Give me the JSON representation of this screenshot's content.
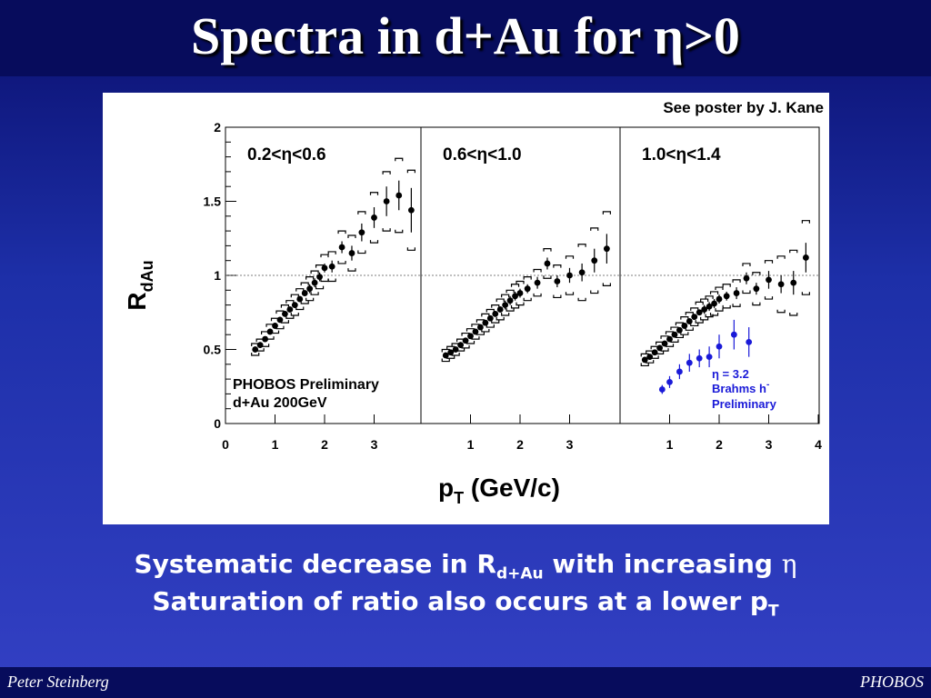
{
  "slide": {
    "title_prefix": "Spectra in d+Au for ",
    "title_eta": "η",
    "title_suffix": ">0",
    "poster_note": "See poster by J. Kane",
    "caption1_a": "Systematic decrease in R",
    "caption1_sub": "d+Au",
    "caption1_b": " with increasing ",
    "caption1_eta": "η",
    "caption2_a": "Saturation of ratio also occurs at a lower p",
    "caption2_sub": "T",
    "footer_left": "Peter Steinberg",
    "footer_right": "PHOBOS"
  },
  "colors": {
    "phobos": "#000000",
    "brahms": "#1a1ad8",
    "title_bar": "#070c5c"
  },
  "chart_data": {
    "type": "scatter",
    "ylabel_main": "R",
    "ylabel_sub": "dAu",
    "xlabel_main": "p",
    "xlabel_sub": "T",
    "xlabel_rest": " (GeV/c)",
    "ylim": [
      0,
      2
    ],
    "yticks": [
      "0",
      "0.5",
      "1",
      "1.5",
      "2"
    ],
    "reference_line": 1,
    "panels": [
      {
        "label": "0.2<η<0.6",
        "xlim": [
          0,
          4
        ],
        "xticks": [
          "0",
          "1",
          "2",
          "3"
        ],
        "notes": [
          "PHOBOS Preliminary",
          "d+Au 200GeV"
        ],
        "series": [
          {
            "name": "PHOBOS Preliminary",
            "x": [
              0.6,
              0.7,
              0.8,
              0.9,
              1.0,
              1.1,
              1.2,
              1.3,
              1.4,
              1.5,
              1.6,
              1.7,
              1.8,
              1.9,
              2.0,
              2.15,
              2.35,
              2.55,
              2.75,
              3.0,
              3.25,
              3.5,
              3.75
            ],
            "y": [
              0.5,
              0.53,
              0.57,
              0.62,
              0.66,
              0.7,
              0.74,
              0.77,
              0.8,
              0.84,
              0.88,
              0.91,
              0.95,
              0.99,
              1.05,
              1.06,
              1.19,
              1.15,
              1.29,
              1.39,
              1.5,
              1.54,
              1.44
            ],
            "err": [
              0.02,
              0.02,
              0.02,
              0.02,
              0.02,
              0.02,
              0.02,
              0.02,
              0.02,
              0.02,
              0.02,
              0.03,
              0.03,
              0.03,
              0.03,
              0.04,
              0.04,
              0.05,
              0.06,
              0.07,
              0.1,
              0.1,
              0.15
            ],
            "sys": [
              0.04,
              0.04,
              0.05,
              0.05,
              0.05,
              0.06,
              0.06,
              0.06,
              0.07,
              0.07,
              0.07,
              0.08,
              0.08,
              0.08,
              0.09,
              0.1,
              0.11,
              0.12,
              0.14,
              0.17,
              0.2,
              0.25,
              0.27
            ]
          }
        ]
      },
      {
        "label": "0.6<η<1.0",
        "xlim": [
          0,
          4
        ],
        "xticks": [
          "1",
          "2",
          "3"
        ],
        "notes": [],
        "series": [
          {
            "name": "PHOBOS Preliminary",
            "x": [
              0.5,
              0.6,
              0.7,
              0.8,
              0.9,
              1.0,
              1.1,
              1.2,
              1.3,
              1.4,
              1.5,
              1.6,
              1.7,
              1.8,
              1.9,
              2.0,
              2.15,
              2.35,
              2.55,
              2.75,
              3.0,
              3.25,
              3.5,
              3.75
            ],
            "y": [
              0.46,
              0.48,
              0.5,
              0.53,
              0.56,
              0.59,
              0.62,
              0.65,
              0.68,
              0.71,
              0.74,
              0.77,
              0.8,
              0.83,
              0.86,
              0.88,
              0.91,
              0.95,
              1.08,
              0.96,
              1.0,
              1.02,
              1.1,
              1.18
            ],
            "err": [
              0.02,
              0.02,
              0.02,
              0.02,
              0.02,
              0.02,
              0.02,
              0.02,
              0.02,
              0.02,
              0.02,
              0.02,
              0.03,
              0.03,
              0.03,
              0.03,
              0.03,
              0.04,
              0.04,
              0.04,
              0.05,
              0.06,
              0.08,
              0.1
            ],
            "sys": [
              0.04,
              0.04,
              0.04,
              0.04,
              0.05,
              0.05,
              0.05,
              0.05,
              0.06,
              0.06,
              0.06,
              0.07,
              0.07,
              0.07,
              0.08,
              0.08,
              0.08,
              0.09,
              0.1,
              0.11,
              0.13,
              0.19,
              0.22,
              0.25
            ]
          }
        ]
      },
      {
        "label": "1.0<η<1.4",
        "xlim": [
          0,
          4
        ],
        "xticks": [
          "1",
          "2",
          "3",
          "4"
        ],
        "notes": [],
        "series": [
          {
            "name": "PHOBOS Preliminary",
            "x": [
              0.5,
              0.6,
              0.7,
              0.8,
              0.9,
              1.0,
              1.1,
              1.2,
              1.3,
              1.4,
              1.5,
              1.6,
              1.7,
              1.8,
              1.9,
              2.0,
              2.15,
              2.35,
              2.55,
              2.75,
              3.0,
              3.25,
              3.5,
              3.75
            ],
            "y": [
              0.43,
              0.45,
              0.48,
              0.51,
              0.54,
              0.57,
              0.6,
              0.63,
              0.66,
              0.69,
              0.72,
              0.75,
              0.77,
              0.79,
              0.81,
              0.84,
              0.86,
              0.88,
              0.98,
              0.91,
              0.97,
              0.94,
              0.95,
              1.12
            ],
            "err": [
              0.02,
              0.02,
              0.02,
              0.02,
              0.02,
              0.02,
              0.02,
              0.02,
              0.02,
              0.02,
              0.02,
              0.02,
              0.03,
              0.03,
              0.03,
              0.03,
              0.03,
              0.04,
              0.04,
              0.04,
              0.06,
              0.06,
              0.08,
              0.1
            ],
            "sys": [
              0.04,
              0.04,
              0.04,
              0.04,
              0.05,
              0.05,
              0.05,
              0.05,
              0.06,
              0.06,
              0.06,
              0.07,
              0.07,
              0.07,
              0.08,
              0.08,
              0.08,
              0.09,
              0.1,
              0.11,
              0.13,
              0.19,
              0.22,
              0.25
            ]
          },
          {
            "name": "Brahms h",
            "x": [
              0.85,
              1.0,
              1.2,
              1.4,
              1.6,
              1.8,
              2.0,
              2.3,
              2.6
            ],
            "y": [
              0.23,
              0.28,
              0.35,
              0.41,
              0.44,
              0.45,
              0.52,
              0.6,
              0.55
            ],
            "err": [
              0.03,
              0.04,
              0.05,
              0.06,
              0.06,
              0.07,
              0.08,
              0.1,
              0.1
            ]
          }
        ],
        "brahms_legend": {
          "eta_label": "η = 3.2",
          "line1": "Brahms h",
          "line1_sup": "-",
          "line2": "Preliminary"
        }
      }
    ]
  }
}
